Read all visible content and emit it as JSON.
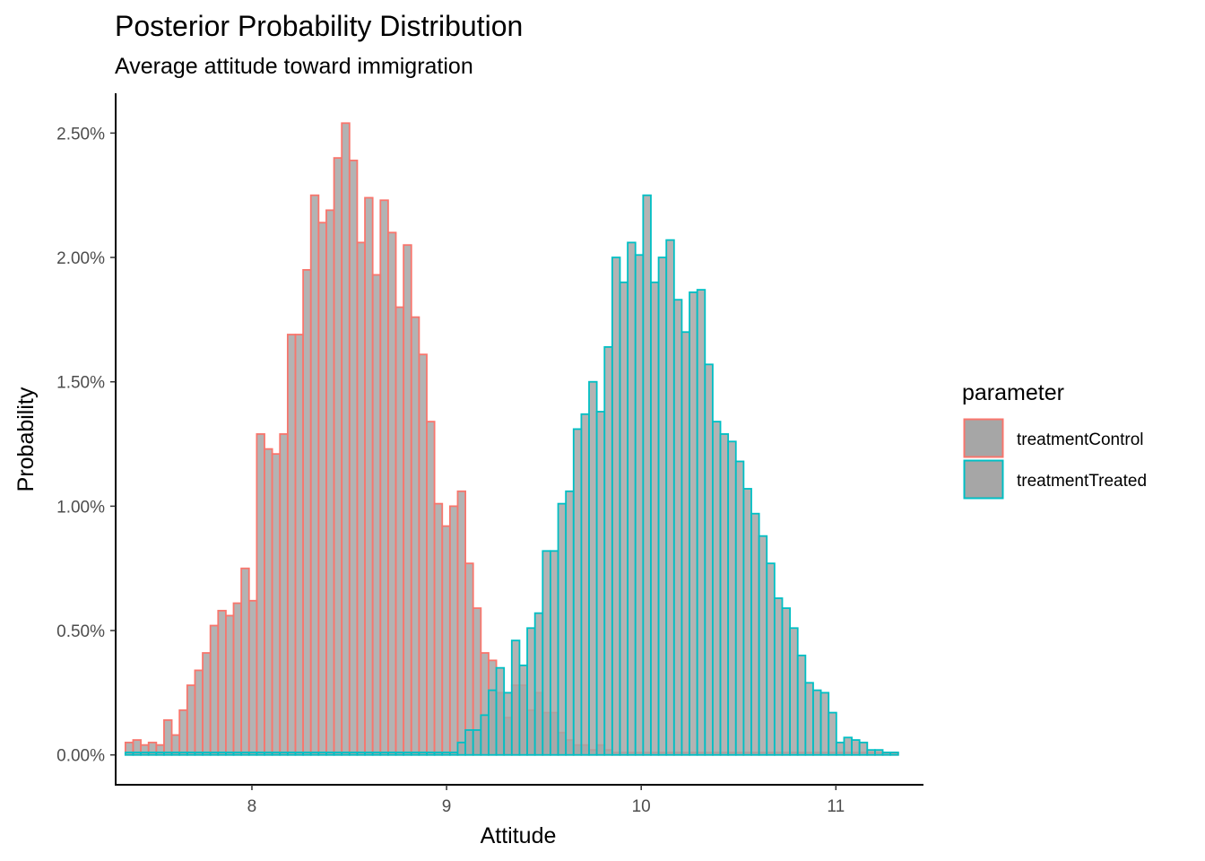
{
  "chart_data": {
    "type": "bar",
    "title": "Posterior Probability Distribution",
    "subtitle": "Average attitude toward immigration",
    "xlabel": "Attitude",
    "ylabel": "Probability",
    "xlim": [
      7.3,
      11.45
    ],
    "ylim": [
      -0.0012,
      0.0266
    ],
    "x_ticks": [
      8,
      9,
      10,
      11
    ],
    "x_tick_labels": [
      "8",
      "9",
      "10",
      "11"
    ],
    "y_ticks": [
      0,
      0.005,
      0.01,
      0.015,
      0.02,
      0.025
    ],
    "y_tick_labels": [
      "0.00%",
      "0.50%",
      "1.00%",
      "1.50%",
      "2.00%",
      "2.50%"
    ],
    "grid": false,
    "legend_position": "right",
    "legend_title": "parameter",
    "bar_fill": "#a6a6a6",
    "bin_start": 7.35,
    "bin_width": 0.0397,
    "series": [
      {
        "name": "treatmentControl",
        "color": "#f8766d",
        "values": [
          0.0005,
          0.0006,
          0.0004,
          0.0005,
          0.0004,
          0.0014,
          0.0008,
          0.0018,
          0.0028,
          0.0034,
          0.0041,
          0.0052,
          0.0058,
          0.0056,
          0.0061,
          0.0075,
          0.0062,
          0.0129,
          0.0123,
          0.0121,
          0.0129,
          0.0169,
          0.0169,
          0.0195,
          0.0225,
          0.0214,
          0.0219,
          0.024,
          0.0254,
          0.0239,
          0.0206,
          0.0224,
          0.0193,
          0.0223,
          0.021,
          0.018,
          0.0205,
          0.0176,
          0.0161,
          0.0134,
          0.0101,
          0.0092,
          0.01,
          0.0106,
          0.0077,
          0.0059,
          0.0041,
          0.0038,
          0.0025,
          0.0015,
          0.0028,
          0.0028,
          0.0018,
          0.0025,
          0.0017,
          0.0017,
          0.0009,
          0.0006,
          0.0004,
          0.0004,
          0.0002,
          0.0004,
          0.0002,
          0.0001,
          0.0001,
          0.0001,
          0.0001,
          0.0001,
          0.0001,
          0.0001,
          0.0001,
          0.0001,
          0.0001,
          0.0001,
          0.0001,
          0.0001,
          0.0001,
          0.0001,
          0.0001,
          0.0001,
          0.0001,
          0.0001,
          0.0001,
          0.0001,
          0.0001,
          0.0001,
          0.0001,
          0.0001,
          0.0001,
          0.0001,
          0.0001,
          0.0001,
          0.0001,
          0.0001,
          0.0001,
          0.0001,
          0.0001,
          0.0001,
          0.0001,
          0.0001
        ]
      },
      {
        "name": "treatmentTreated",
        "color": "#00bfc4",
        "values": [
          0.0001,
          0.0001,
          0.0001,
          0.0001,
          0.0001,
          0.0001,
          0.0001,
          0.0001,
          0.0001,
          0.0001,
          0.0001,
          0.0001,
          0.0001,
          0.0001,
          0.0001,
          0.0001,
          0.0001,
          0.0001,
          0.0001,
          0.0001,
          0.0001,
          0.0001,
          0.0001,
          0.0001,
          0.0001,
          0.0001,
          0.0001,
          0.0001,
          0.0001,
          0.0001,
          0.0001,
          0.0001,
          0.0001,
          0.0001,
          0.0001,
          0.0001,
          0.0001,
          0.0001,
          0.0001,
          0.0001,
          0.0001,
          0.0001,
          0.0001,
          0.0005,
          0.001,
          0.001,
          0.0016,
          0.0026,
          0.0035,
          0.0025,
          0.0046,
          0.0036,
          0.0051,
          0.0057,
          0.0082,
          0.0082,
          0.0101,
          0.0106,
          0.0131,
          0.0137,
          0.015,
          0.0138,
          0.0164,
          0.02,
          0.019,
          0.0206,
          0.0201,
          0.0225,
          0.019,
          0.02,
          0.0207,
          0.0183,
          0.017,
          0.0186,
          0.0187,
          0.0157,
          0.0134,
          0.0129,
          0.0126,
          0.0118,
          0.0107,
          0.0097,
          0.0088,
          0.0077,
          0.0063,
          0.0059,
          0.0051,
          0.004,
          0.0029,
          0.0026,
          0.0025,
          0.0017,
          0.0005,
          0.0007,
          0.0006,
          0.0005,
          0.0002,
          0.0002,
          0.0001,
          0.0001
        ]
      }
    ]
  }
}
